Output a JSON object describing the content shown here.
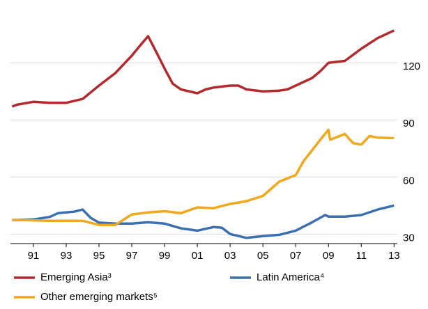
{
  "chart_data": {
    "type": "line",
    "series": [
      {
        "name": "Emerging Asia³",
        "color": "#b22a2e",
        "x": [
          1989.7,
          1990,
          1991,
          1992,
          1993,
          1994,
          1995,
          1996,
          1997,
          1997.5,
          1998,
          1998.5,
          1999,
          1999.5,
          2000,
          2001,
          2001.5,
          2002,
          2003,
          2003.5,
          2004,
          2005,
          2006,
          2006.5,
          2007,
          2008,
          2008.5,
          2009,
          2010,
          2011,
          2012,
          2013
        ],
        "values": [
          97,
          98,
          99.5,
          99,
          99,
          101,
          108,
          114.6,
          123.7,
          129,
          134,
          125.6,
          117,
          109,
          106,
          104,
          106,
          107,
          108,
          108,
          106,
          105,
          105.4,
          106,
          108,
          112,
          115.6,
          120,
          121,
          127.4,
          133,
          137
        ]
      },
      {
        "name": "Latin America⁴",
        "color": "#3a6fb0",
        "x": [
          1989.7,
          1990,
          1991,
          1992,
          1992.5,
          1993.5,
          1994,
          1994.5,
          1995,
          1996,
          1997,
          1998,
          1999,
          2000,
          2001,
          2002,
          2002.5,
          2003,
          2004,
          2005,
          2006,
          2007,
          2008,
          2008.8,
          2009,
          2010,
          2011,
          2012,
          2013
        ],
        "values": [
          37.4,
          37.4,
          37.7,
          39,
          41,
          41.8,
          42.9,
          38.5,
          36,
          35.5,
          35.5,
          36.2,
          35.5,
          33,
          31.8,
          33.7,
          33.3,
          30,
          28,
          28.9,
          29.6,
          31.8,
          36.2,
          40,
          39.2,
          39.2,
          40,
          42.9,
          45
        ]
      },
      {
        "name": "Other emerging markets⁵",
        "color": "#f0a81c",
        "x": [
          1989.7,
          1990,
          1992,
          1994,
          1995,
          1996,
          1997,
          1998,
          1999,
          2000,
          2001,
          2002,
          2003,
          2004,
          2005,
          2006,
          2007,
          2007.5,
          2008,
          2008.5,
          2009,
          2009.1,
          2010,
          2010.5,
          2011,
          2011.5,
          2012,
          2013
        ],
        "values": [
          37.4,
          37.4,
          37,
          37,
          34.8,
          34.8,
          40.3,
          41.4,
          42,
          41,
          44,
          43.6,
          45.8,
          47.3,
          50,
          57.6,
          61,
          68.6,
          74,
          79.6,
          84.8,
          79.6,
          82.6,
          77.8,
          77,
          81.5,
          80.7,
          80.4
        ]
      }
    ],
    "xlim": [
      1989.6,
      2013.2
    ],
    "xticks": [
      {
        "value": 1991,
        "label": "91"
      },
      {
        "value": 1993,
        "label": "93"
      },
      {
        "value": 1995,
        "label": "95"
      },
      {
        "value": 1997,
        "label": "97"
      },
      {
        "value": 1999,
        "label": "99"
      },
      {
        "value": 2001,
        "label": "01"
      },
      {
        "value": 2003,
        "label": "03"
      },
      {
        "value": 2005,
        "label": "05"
      },
      {
        "value": 2007,
        "label": "07"
      },
      {
        "value": 2009,
        "label": "09"
      },
      {
        "value": 2011,
        "label": "11"
      },
      {
        "value": 2013,
        "label": "13"
      }
    ],
    "ylim": [
      25,
      153
    ],
    "yticks": [
      30,
      60,
      90,
      120
    ],
    "grid": true
  }
}
